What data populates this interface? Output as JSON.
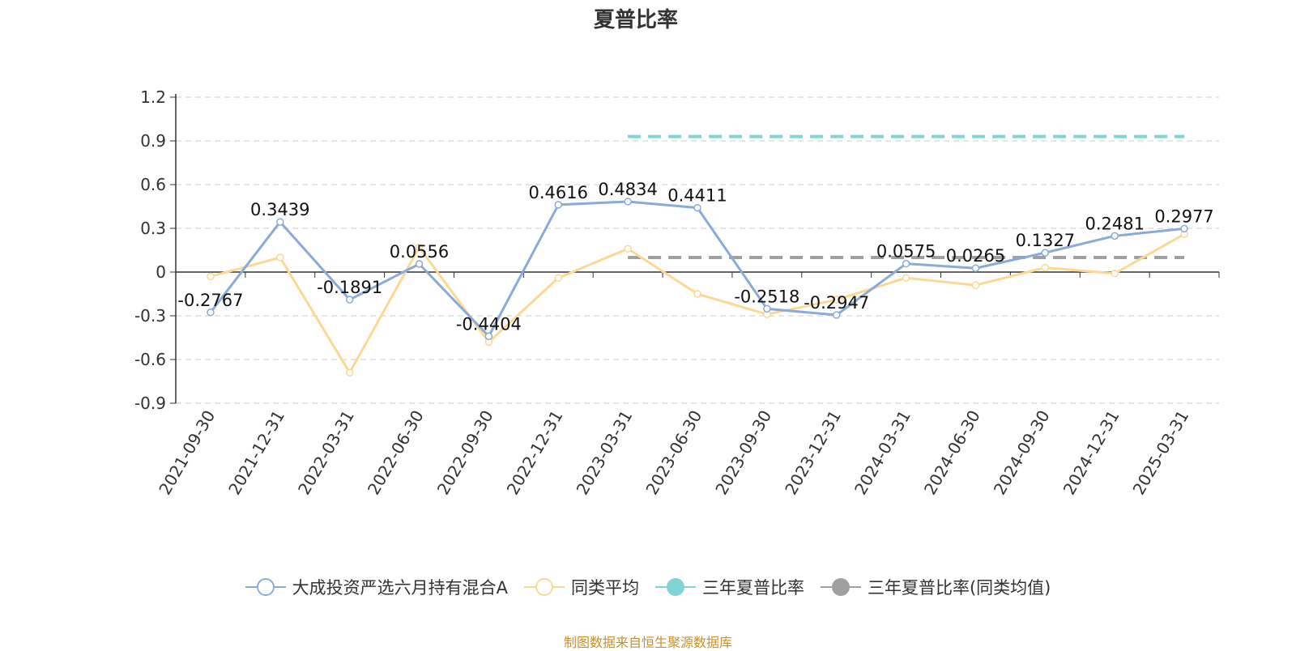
{
  "chart_data": {
    "type": "line",
    "title": "夏普比率",
    "categories": [
      "2021-09-30",
      "2021-12-31",
      "2022-03-31",
      "2022-06-30",
      "2022-09-30",
      "2022-12-31",
      "2023-03-31",
      "2023-06-30",
      "2023-09-30",
      "2023-12-31",
      "2024-03-31",
      "2024-06-30",
      "2024-09-30",
      "2024-12-31",
      "2025-03-31"
    ],
    "ylim": [
      -0.9,
      1.2
    ],
    "yticks": [
      "1.2",
      "0.9",
      "0.6",
      "0.3",
      "0",
      "-0.3",
      "-0.6",
      "-0.9"
    ],
    "grid": true,
    "legend_position": "bottom",
    "series": [
      {
        "name": "大成投资严选六月持有混合A",
        "color": "#8aaad8",
        "values": [
          -0.2767,
          0.3439,
          -0.1891,
          0.0556,
          -0.4404,
          0.4616,
          0.4834,
          0.4411,
          -0.2518,
          -0.2947,
          0.0575,
          0.0265,
          0.1327,
          0.2481,
          0.2977
        ],
        "labels": [
          "-0.2767",
          "0.3439",
          "-0.1891",
          "0.0556",
          "-0.4404",
          "0.4616",
          "0.4834",
          "0.4411",
          "-0.2518",
          "-0.2947",
          "0.0575",
          "0.0265",
          "0.1327",
          "0.2481",
          "0.2977"
        ]
      },
      {
        "name": "同类平均",
        "color": "#fbd994",
        "values": [
          -0.03,
          0.1,
          -0.69,
          0.17,
          -0.48,
          -0.04,
          0.16,
          -0.15,
          -0.29,
          -0.19,
          -0.04,
          -0.09,
          0.03,
          -0.01,
          0.26
        ]
      },
      {
        "name": "三年夏普比率",
        "color": "#7fd4d4",
        "style": "dashed",
        "start_category": "2023-03-31",
        "end_category": "2025-03-31",
        "value": 0.93
      },
      {
        "name": "三年夏普比率(同类均值)",
        "color": "#a0a0a0",
        "style": "dashed",
        "start_category": "2023-03-31",
        "end_category": "2025-03-31",
        "value": 0.1
      }
    ]
  },
  "source_note": "制图数据来自恒生聚源数据库"
}
